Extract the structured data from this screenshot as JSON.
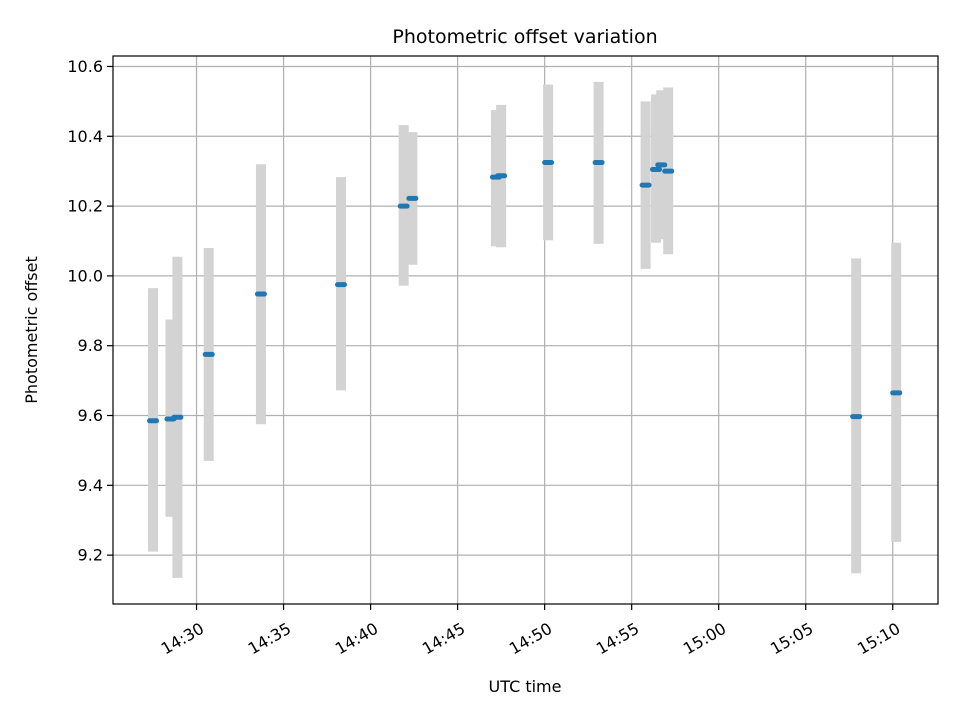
{
  "chart_data": {
    "type": "scatter",
    "title": "Photometric offset variation",
    "xlabel": "UTC time",
    "ylabel": "Photometric offset",
    "x_axis": {
      "kind": "time",
      "range": [
        "14:25:12",
        "15:12:36"
      ],
      "ticks": [
        "14:30",
        "14:35",
        "14:40",
        "14:45",
        "14:50",
        "14:55",
        "15:00",
        "15:05",
        "15:10"
      ]
    },
    "y_axis": {
      "range": [
        9.06,
        10.63
      ],
      "ticks": [
        "9.2",
        "9.4",
        "9.6",
        "9.8",
        "10.0",
        "10.2",
        "10.4",
        "10.6"
      ]
    },
    "grid": true,
    "colors": {
      "point": "#1f77b4",
      "error_bar": "#d3d3d3",
      "grid": "#b0b0b0"
    },
    "series": [
      {
        "points": [
          {
            "x": "14:27:30",
            "y": 9.585,
            "low": 9.21,
            "high": 9.965
          },
          {
            "x": "14:28:30",
            "y": 9.59,
            "low": 9.31,
            "high": 9.875
          },
          {
            "x": "14:28:54",
            "y": 9.595,
            "low": 9.135,
            "high": 10.055
          },
          {
            "x": "14:30:42",
            "y": 9.775,
            "low": 9.47,
            "high": 10.08
          },
          {
            "x": "14:33:42",
            "y": 9.948,
            "low": 9.575,
            "high": 10.32
          },
          {
            "x": "14:38:18",
            "y": 9.975,
            "low": 9.672,
            "high": 10.283
          },
          {
            "x": "14:41:54",
            "y": 10.2,
            "low": 9.972,
            "high": 10.432
          },
          {
            "x": "14:42:24",
            "y": 10.222,
            "low": 10.032,
            "high": 10.412
          },
          {
            "x": "14:47:12",
            "y": 10.283,
            "low": 10.085,
            "high": 10.475
          },
          {
            "x": "14:47:30",
            "y": 10.287,
            "low": 10.082,
            "high": 10.49
          },
          {
            "x": "14:50:12",
            "y": 10.325,
            "low": 10.102,
            "high": 10.548
          },
          {
            "x": "14:53:06",
            "y": 10.325,
            "low": 10.092,
            "high": 10.556
          },
          {
            "x": "14:55:48",
            "y": 10.26,
            "low": 10.02,
            "high": 10.5
          },
          {
            "x": "14:56:24",
            "y": 10.305,
            "low": 10.095,
            "high": 10.52
          },
          {
            "x": "14:56:42",
            "y": 10.318,
            "low": 10.105,
            "high": 10.532
          },
          {
            "x": "14:57:06",
            "y": 10.3,
            "low": 10.062,
            "high": 10.54
          },
          {
            "x": "15:07:54",
            "y": 9.597,
            "low": 9.148,
            "high": 10.05
          },
          {
            "x": "15:10:12",
            "y": 9.665,
            "low": 9.238,
            "high": 10.095
          }
        ]
      }
    ]
  }
}
